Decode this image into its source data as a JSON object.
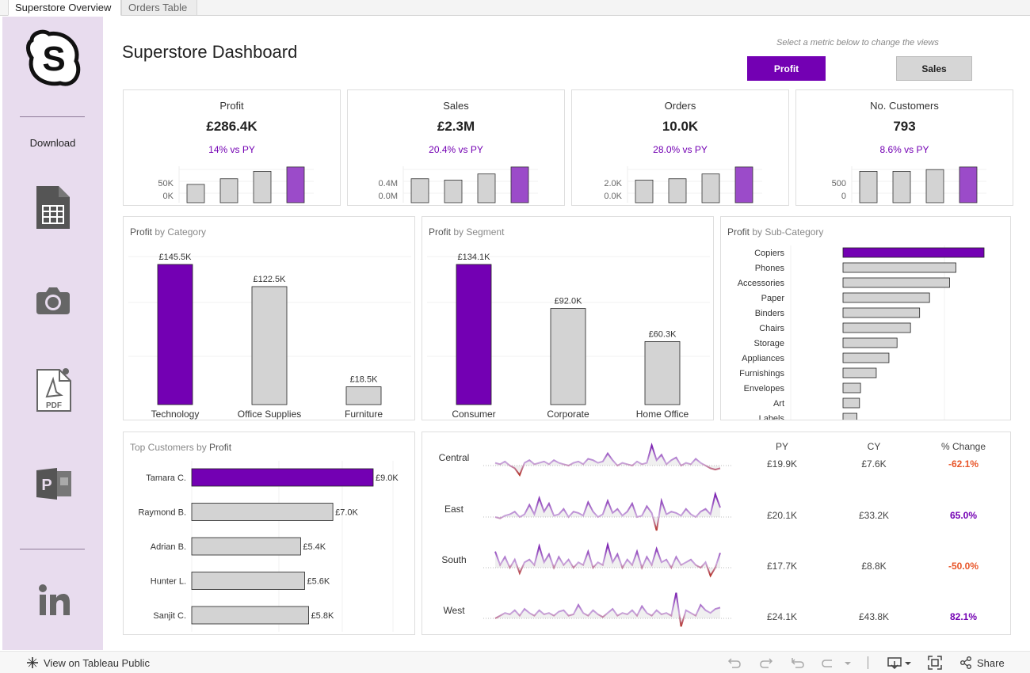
{
  "tabs": [
    {
      "label": "Superstore Overview",
      "active": true
    },
    {
      "label": "Orders Table",
      "active": false
    }
  ],
  "sidebar": {
    "logo_icon": "skype-s-logo-icon",
    "download_label": "Download",
    "icons": [
      "spreadsheet-icon",
      "camera-icon",
      "pdf-icon",
      "powerpoint-icon",
      "linkedin-icon"
    ],
    "pdf_text": "PDF"
  },
  "header": {
    "title": "Superstore Dashboard",
    "hint": "Select a metric below to change the views",
    "metric_buttons": [
      {
        "label": "Profit",
        "selected": true
      },
      {
        "label": "Sales",
        "selected": false
      }
    ]
  },
  "colors": {
    "accent": "#7300b3",
    "bar": "#d3d3d3",
    "highlight_bar": "#9b4bc9",
    "negative": "#e8562a"
  },
  "kpis": [
    {
      "title": "Profit",
      "value": "£286.4K",
      "change": "14% vs PY",
      "ticks": [
        "50K",
        "0K"
      ],
      "bars": [
        0.42,
        0.55,
        0.72,
        0.82
      ]
    },
    {
      "title": "Sales",
      "value": "£2.3M",
      "change": "20.4% vs PY",
      "ticks": [
        "0.4M",
        "0.0M"
      ],
      "bars": [
        0.55,
        0.52,
        0.66,
        0.82
      ]
    },
    {
      "title": "Orders",
      "value": "10.0K",
      "change": "28.0% vs PY",
      "ticks": [
        "2.0K",
        "0.0K"
      ],
      "bars": [
        0.52,
        0.55,
        0.66,
        0.82
      ]
    },
    {
      "title": "No. Customers",
      "value": "793",
      "change": "8.6% vs PY",
      "ticks": [
        "500",
        "0"
      ],
      "bars": [
        0.72,
        0.72,
        0.76,
        0.82
      ]
    }
  ],
  "chart_data": [
    {
      "type": "bar",
      "title_metric": "Profit",
      "title_rest": "by Category",
      "categories": [
        "Technology",
        "Office Supplies",
        "Furniture"
      ],
      "values": [
        145.5,
        122.5,
        18.5
      ],
      "labels": [
        "£145.5K",
        "£122.5K",
        "£18.5K"
      ],
      "ylim": [
        0,
        145.5
      ]
    },
    {
      "type": "bar",
      "title_metric": "Profit",
      "title_rest": "by Segment",
      "categories": [
        "Consumer",
        "Corporate",
        "Home Office"
      ],
      "values": [
        134.1,
        92.0,
        60.3
      ],
      "labels": [
        "£134.1K",
        "£92.0K",
        "£60.3K"
      ],
      "ylim": [
        0,
        134.1
      ]
    },
    {
      "type": "bar",
      "orientation": "horizontal",
      "title_metric": "Profit",
      "title_rest": "by Sub-Category",
      "categories": [
        "Copiers",
        "Phones",
        "Accessories",
        "Paper",
        "Binders",
        "Chairs",
        "Storage",
        "Appliances",
        "Furnishings",
        "Envelopes",
        "Art",
        "Labels"
      ],
      "values": [
        55.6,
        44.5,
        42.0,
        34.1,
        30.2,
        26.6,
        21.3,
        18.1,
        13.1,
        6.9,
        6.5,
        5.5
      ]
    },
    {
      "type": "bar",
      "orientation": "horizontal",
      "title_prefix": "Top Customers by",
      "title_metric": "Profit",
      "categories": [
        "Tamara C.",
        "Raymond B.",
        "Adrian B.",
        "Hunter L.",
        "Sanjit C."
      ],
      "values": [
        9.0,
        7.0,
        5.4,
        5.6,
        5.8
      ],
      "labels": [
        "£9.0K",
        "£7.0K",
        "£5.4K",
        "£5.6K",
        "£5.8K"
      ]
    }
  ],
  "regions_table": {
    "headers": [
      "PY",
      "CY",
      "% Change"
    ],
    "rows": [
      {
        "region": "Central",
        "py": "£19.9K",
        "cy": "£7.6K",
        "change": "-62.1%",
        "positive": false
      },
      {
        "region": "East",
        "py": "£20.1K",
        "cy": "£33.2K",
        "change": "65.0%",
        "positive": true
      },
      {
        "region": "South",
        "py": "£17.7K",
        "cy": "£8.8K",
        "change": "-50.0%",
        "positive": false
      },
      {
        "region": "West",
        "py": "£24.1K",
        "cy": "£43.8K",
        "change": "82.1%",
        "positive": true
      }
    ],
    "sparklines": [
      [
        0.1,
        0.05,
        0.15,
        0.0,
        -0.1,
        -0.35,
        0.1,
        0.2,
        0.05,
        0.1,
        0.15,
        0.05,
        0.2,
        0.1,
        0.05,
        0.0,
        0.1,
        0.15,
        0.05,
        0.25,
        0.2,
        0.1,
        0.15,
        0.45,
        0.2,
        0.0,
        0.1,
        0.05,
        0.0,
        0.15,
        0.05,
        0.1,
        0.75,
        0.2,
        0.4,
        0.05,
        0.2,
        0.3,
        0.0,
        0.1,
        0.05,
        0.25,
        0.1,
        0.0,
        -0.1,
        -0.15,
        -0.1
      ],
      [
        0.0,
        -0.05,
        0.05,
        0.1,
        0.2,
        0.0,
        0.1,
        0.45,
        0.1,
        0.7,
        0.2,
        0.5,
        0.05,
        0.1,
        0.3,
        0.0,
        0.2,
        0.15,
        0.05,
        0.55,
        0.2,
        0.0,
        0.1,
        0.6,
        0.15,
        0.3,
        0.05,
        0.2,
        0.5,
        0.0,
        0.05,
        0.4,
        0.15,
        -0.5,
        0.6,
        0.1,
        0.2,
        0.15,
        0.05,
        0.3,
        0.1,
        0.0,
        0.2,
        0.3,
        0.1,
        0.85,
        0.35
      ],
      [
        0.6,
        0.1,
        0.4,
        0.0,
        0.3,
        -0.2,
        0.2,
        0.3,
        0.1,
        0.8,
        0.2,
        0.5,
        0.0,
        0.4,
        0.1,
        0.3,
        0.0,
        0.2,
        0.1,
        0.6,
        0.0,
        0.2,
        0.1,
        0.85,
        0.2,
        0.5,
        0.0,
        0.3,
        0.1,
        0.6,
        0.0,
        0.4,
        0.1,
        0.7,
        0.2,
        0.3,
        0.0,
        0.4,
        0.1,
        0.2,
        0.3,
        0.1,
        0.0,
        0.2,
        -0.3,
        0.0,
        0.55
      ],
      [
        0.0,
        0.1,
        0.2,
        0.15,
        0.3,
        0.1,
        0.35,
        0.2,
        0.1,
        0.3,
        0.15,
        0.2,
        0.1,
        0.25,
        0.3,
        0.1,
        0.15,
        0.5,
        0.2,
        0.1,
        0.3,
        0.15,
        0.05,
        0.2,
        0.35,
        0.1,
        0.2,
        0.15,
        0.3,
        0.1,
        0.45,
        0.2,
        0.1,
        0.3,
        0.15,
        0.2,
        0.1,
        0.95,
        -0.3,
        0.3,
        0.2,
        0.1,
        0.5,
        0.3,
        0.2,
        0.35,
        0.4
      ]
    ]
  },
  "footer": {
    "view_label": "View on Tableau Public",
    "share_label": "Share",
    "icons": [
      "undo-icon",
      "redo-icon",
      "revert-icon",
      "refresh-icon",
      "download-icon",
      "fullscreen-icon",
      "share-icon"
    ]
  }
}
